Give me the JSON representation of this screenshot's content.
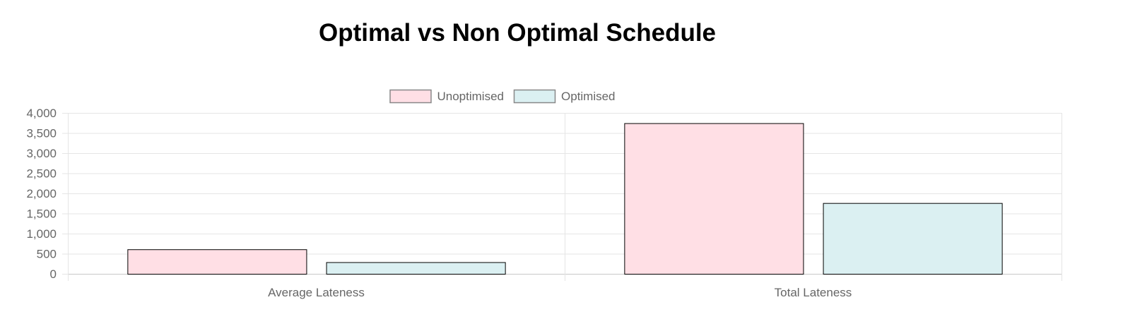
{
  "page": {
    "title": "Optimal vs Non Optimal Schedule"
  },
  "chart_data": {
    "type": "bar",
    "title": "Optimal vs Non Optimal Schedule",
    "categories": [
      "Average Lateness",
      "Total Lateness"
    ],
    "series": [
      {
        "name": "Unoptimised",
        "values": [
          610,
          3745
        ],
        "color": "#ffdfe5"
      },
      {
        "name": "Optimised",
        "values": [
          290,
          1760
        ],
        "color": "#dbf0f2"
      }
    ],
    "ylim": [
      0,
      4000
    ],
    "yticks": [
      0,
      500,
      1000,
      1500,
      2000,
      2500,
      3000,
      3500,
      4000
    ],
    "ytick_labels": [
      "0",
      "500",
      "1,000",
      "1,500",
      "2,000",
      "2,500",
      "3,000",
      "3,500",
      "4,000"
    ],
    "xlabel": "",
    "ylabel": "",
    "grid": true,
    "legend_position": "top",
    "bar_border_color": "#000000",
    "grid_color": "#e5e5e5",
    "tick_color": "#666666"
  }
}
